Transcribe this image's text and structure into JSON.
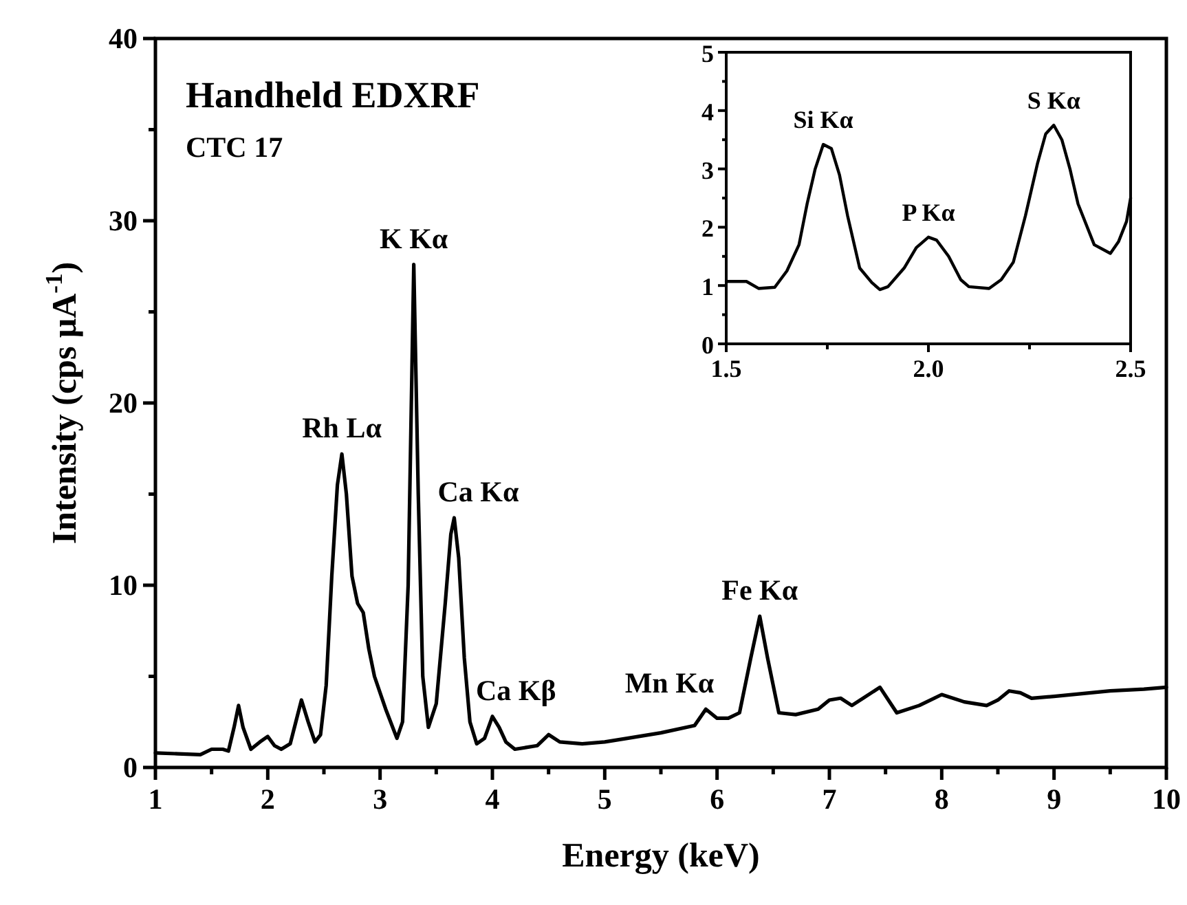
{
  "chart_data": [
    {
      "type": "line",
      "xlabel": "Energy (keV)",
      "ylabel": "Intensity (cps μA$^{-1}$)",
      "xlim": [
        1,
        10
      ],
      "ylim": [
        0,
        40
      ],
      "xticks": [
        1,
        {
          "value": 1.5,
          "label": null
        },
        2,
        {
          "value": 2.5,
          "label": null
        },
        3,
        {
          "value": 3.5,
          "label": null
        },
        4,
        {
          "value": 4.5,
          "label": null
        },
        5,
        {
          "value": 5.5,
          "label": null
        },
        6,
        {
          "value": 6.5,
          "label": null
        },
        7,
        {
          "value": 7.5,
          "label": null
        },
        8,
        {
          "value": 8.5,
          "label": null
        },
        9,
        {
          "value": 9.5,
          "label": null
        },
        10
      ],
      "yticks": [
        0,
        {
          "value": 5,
          "label": null
        },
        10,
        {
          "value": 15,
          "label": null
        },
        20,
        {
          "value": 25,
          "label": null
        },
        30,
        {
          "value": 35,
          "label": null
        },
        40
      ],
      "grid": false,
      "marker": "none",
      "line_style": "solid",
      "annotations": [
        "Handheld EDXRF",
        "CTC 17",
        {
          "text": "Rh Lα",
          "x": 2.66,
          "y": 17.2
        },
        {
          "text": "K Kα",
          "x": 3.3,
          "y": 27.6
        },
        {
          "text": "Ca Kα",
          "x": 3.66,
          "y": 13.7
        },
        {
          "text": "Ca Kβ",
          "x": 4.0,
          "y": 2.8
        },
        {
          "text": "Mn Kα",
          "x": 5.9,
          "y": 3.2
        },
        {
          "text": "Fe Kα",
          "x": 6.38,
          "y": 8.3
        }
      ],
      "series": [
        {
          "color": "#000000",
          "x": [
            1.0,
            1.2,
            1.4,
            1.5,
            1.6,
            1.65,
            1.7,
            1.74,
            1.78,
            1.85,
            1.93,
            2.0,
            2.06,
            2.12,
            2.2,
            2.25,
            2.3,
            2.36,
            2.42,
            2.47,
            2.52,
            2.57,
            2.62,
            2.66,
            2.7,
            2.75,
            2.8,
            2.85,
            2.9,
            2.95,
            3.05,
            3.15,
            3.2,
            3.25,
            3.3,
            3.34,
            3.38,
            3.43,
            3.5,
            3.58,
            3.63,
            3.66,
            3.7,
            3.75,
            3.8,
            3.86,
            3.93,
            4.0,
            4.06,
            4.12,
            4.2,
            4.3,
            4.4,
            4.5,
            4.6,
            4.8,
            5.0,
            5.2,
            5.5,
            5.8,
            5.9,
            6.0,
            6.1,
            6.2,
            6.3,
            6.38,
            6.45,
            6.55,
            6.7,
            6.9,
            7.0,
            7.1,
            7.2,
            7.45,
            7.6,
            7.8,
            8.0,
            8.2,
            8.4,
            8.5,
            8.6,
            8.7,
            8.8,
            9.0,
            9.5,
            9.8,
            10.0
          ],
          "values": [
            0.8,
            0.75,
            0.7,
            1.0,
            1.0,
            0.9,
            2.2,
            3.4,
            2.2,
            1.0,
            1.4,
            1.7,
            1.2,
            1.0,
            1.3,
            2.5,
            3.7,
            2.5,
            1.4,
            1.8,
            4.5,
            10.5,
            15.5,
            17.2,
            15.0,
            10.5,
            9.0,
            8.5,
            6.5,
            5.0,
            3.2,
            1.6,
            2.5,
            10.0,
            27.6,
            15.0,
            5.0,
            2.2,
            3.5,
            9.0,
            12.8,
            13.7,
            11.5,
            6.0,
            2.5,
            1.3,
            1.6,
            2.8,
            2.2,
            1.4,
            1.0,
            1.1,
            1.2,
            1.8,
            1.4,
            1.3,
            1.4,
            1.6,
            1.9,
            2.3,
            3.2,
            2.7,
            2.7,
            3.0,
            6.0,
            8.3,
            6.0,
            3.0,
            2.9,
            3.2,
            3.7,
            3.8,
            3.4,
            4.4,
            3.0,
            3.4,
            4.0,
            3.6,
            3.4,
            3.7,
            4.2,
            4.1,
            3.8,
            3.9,
            4.2,
            4.3,
            4.4
          ]
        }
      ]
    },
    {
      "type": "line",
      "xlim": [
        1.5,
        2.5
      ],
      "ylim": [
        0,
        5
      ],
      "xticks": [
        1.5,
        {
          "value": 1.75,
          "label": null
        },
        {
          "value": 2.0,
          "label": "2.0"
        },
        {
          "value": 2.25,
          "label": null
        },
        {
          "value": 2.5,
          "label": "2.5"
        }
      ],
      "yticks": [
        0,
        {
          "value": 0.5,
          "label": null
        },
        1,
        {
          "value": 1.5,
          "label": null
        },
        2,
        {
          "value": 2.5,
          "label": null
        },
        3,
        {
          "value": 3.5,
          "label": null
        },
        4,
        {
          "value": 4.5,
          "label": null
        },
        5
      ],
      "grid": false,
      "marker": "none",
      "line_style": "solid",
      "annotations": [
        {
          "text": "Si Kα",
          "x": 1.74,
          "y": 3.42
        },
        {
          "text": "P Kα",
          "x": 2.0,
          "y": 1.83
        },
        {
          "text": "S Kα",
          "x": 2.31,
          "y": 3.75
        }
      ],
      "series": [
        {
          "color": "#000000",
          "x": [
            1.5,
            1.55,
            1.58,
            1.62,
            1.65,
            1.68,
            1.7,
            1.72,
            1.74,
            1.76,
            1.78,
            1.8,
            1.83,
            1.86,
            1.88,
            1.9,
            1.94,
            1.97,
            2.0,
            2.02,
            2.05,
            2.08,
            2.1,
            2.15,
            2.18,
            2.21,
            2.24,
            2.27,
            2.29,
            2.31,
            2.33,
            2.35,
            2.37,
            2.41,
            2.45,
            2.47,
            2.49,
            2.5
          ],
          "values": [
            1.07,
            1.07,
            0.95,
            0.97,
            1.25,
            1.7,
            2.4,
            3.0,
            3.42,
            3.35,
            2.9,
            2.2,
            1.3,
            1.05,
            0.93,
            0.98,
            1.3,
            1.65,
            1.83,
            1.78,
            1.5,
            1.1,
            0.98,
            0.95,
            1.1,
            1.4,
            2.2,
            3.1,
            3.6,
            3.75,
            3.5,
            3.0,
            2.4,
            1.7,
            1.55,
            1.75,
            2.1,
            2.5
          ]
        }
      ]
    }
  ]
}
